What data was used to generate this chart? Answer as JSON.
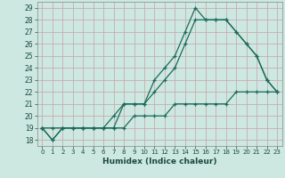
{
  "title": "",
  "xlabel": "Humidex (Indice chaleur)",
  "ylabel": "",
  "background_color": "#cce8e0",
  "grid_color": "#b8d8d0",
  "line_color": "#1a6b5a",
  "xlim": [
    -0.5,
    23.5
  ],
  "ylim": [
    17.5,
    29.5
  ],
  "xticks": [
    0,
    1,
    2,
    3,
    4,
    5,
    6,
    7,
    8,
    9,
    10,
    11,
    12,
    13,
    14,
    15,
    16,
    17,
    18,
    19,
    20,
    21,
    22,
    23
  ],
  "yticks": [
    18,
    19,
    20,
    21,
    22,
    23,
    24,
    25,
    26,
    27,
    28,
    29
  ],
  "series": [
    {
      "x": [
        0,
        1,
        2,
        3,
        4,
        5,
        6,
        7,
        8,
        9,
        10,
        11,
        12,
        13,
        14,
        15,
        16,
        17,
        18,
        19,
        20,
        21,
        22,
        23
      ],
      "y": [
        19,
        18,
        19,
        19,
        19,
        19,
        19,
        19,
        21,
        21,
        21,
        22,
        23,
        24,
        26,
        28,
        28,
        28,
        28,
        27,
        26,
        25,
        23,
        22
      ]
    },
    {
      "x": [
        0,
        1,
        2,
        3,
        4,
        5,
        6,
        7,
        8,
        9,
        10,
        11,
        12,
        13,
        14,
        15,
        16,
        17,
        18,
        19,
        20,
        21,
        22,
        23
      ],
      "y": [
        19,
        18,
        19,
        19,
        19,
        19,
        19,
        20,
        21,
        21,
        21,
        23,
        24,
        25,
        27,
        29,
        28,
        28,
        28,
        27,
        26,
        25,
        23,
        22
      ]
    },
    {
      "x": [
        0,
        1,
        2,
        3,
        4,
        5,
        6,
        7,
        8,
        9,
        10,
        11,
        12,
        13,
        14,
        15,
        16,
        17,
        18,
        19,
        20,
        21,
        22,
        23
      ],
      "y": [
        19,
        19,
        19,
        19,
        19,
        19,
        19,
        19,
        19,
        20,
        20,
        20,
        20,
        21,
        21,
        21,
        21,
        21,
        21,
        22,
        22,
        22,
        22,
        22
      ]
    }
  ]
}
